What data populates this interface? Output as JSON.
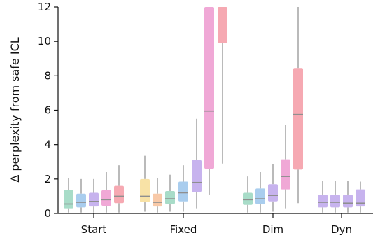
{
  "chart_data": {
    "type": "box",
    "ylabel": "Δ perplexity from safe ICL",
    "ylim": [
      0,
      12
    ],
    "yticks": [
      0,
      2,
      4,
      6,
      8,
      10,
      12
    ],
    "groups": [
      "Start",
      "Fixed",
      "Dim",
      "Dyn"
    ],
    "palette": [
      "#a8dcc8",
      "#a9cdee",
      "#c7b3ee",
      "#f0a8d6",
      "#f6a9b2",
      "#f8e2a6",
      "#f8c9a8"
    ],
    "boxes": [
      {
        "group": "Start",
        "color": "#a8dcc8",
        "whislo": 0.05,
        "q1": 0.3,
        "med": 0.55,
        "q3": 1.35,
        "whishi": 2.05
      },
      {
        "group": "Start",
        "color": "#a9cdee",
        "whislo": 0.05,
        "q1": 0.35,
        "med": 0.65,
        "q3": 1.15,
        "whishi": 2.0
      },
      {
        "group": "Start",
        "color": "#c7b3ee",
        "whislo": 0.05,
        "q1": 0.4,
        "med": 0.7,
        "q3": 1.2,
        "whishi": 2.0
      },
      {
        "group": "Start",
        "color": "#f0a8d6",
        "whislo": 0.05,
        "q1": 0.45,
        "med": 0.8,
        "q3": 1.35,
        "whishi": 2.4
      },
      {
        "group": "Start",
        "color": "#f6a9b2",
        "whislo": 0.05,
        "q1": 0.6,
        "med": 1.0,
        "q3": 1.6,
        "whishi": 2.8
      },
      {
        "group": "Fixed",
        "color": "#f8e2a6",
        "whislo": 0.1,
        "q1": 0.65,
        "med": 1.0,
        "q3": 2.0,
        "whishi": 3.35
      },
      {
        "group": "Fixed",
        "color": "#f8c9a8",
        "whislo": 0.05,
        "q1": 0.4,
        "med": 0.65,
        "q3": 1.15,
        "whishi": 2.05
      },
      {
        "group": "Fixed",
        "color": "#a8dcc8",
        "whislo": 0.1,
        "q1": 0.55,
        "med": 0.85,
        "q3": 1.3,
        "whishi": 2.25
      },
      {
        "group": "Fixed",
        "color": "#a9cdee",
        "whislo": 0.1,
        "q1": 0.7,
        "med": 1.2,
        "q3": 1.85,
        "whishi": 2.8
      },
      {
        "group": "Fixed",
        "color": "#c7b3ee",
        "whislo": 0.3,
        "q1": 1.25,
        "med": 1.8,
        "q3": 3.1,
        "whishi": 5.5
      },
      {
        "group": "Fixed",
        "color": "#f0a8d6",
        "whislo": 1.1,
        "q1": 2.6,
        "med": 5.95,
        "q3": 12,
        "whishi": 12
      },
      {
        "group": "Fixed",
        "color": "#f6a9b2",
        "whislo": 2.9,
        "q1": 9.9,
        "med": 12,
        "q3": 12,
        "whishi": 12
      },
      {
        "group": "Dim",
        "color": "#a8dcc8",
        "whislo": 0.05,
        "q1": 0.5,
        "med": 0.8,
        "q3": 1.2,
        "whishi": 2.15
      },
      {
        "group": "Dim",
        "color": "#a9cdee",
        "whislo": 0.05,
        "q1": 0.55,
        "med": 0.85,
        "q3": 1.45,
        "whishi": 2.4
      },
      {
        "group": "Dim",
        "color": "#c7b3ee",
        "whislo": 0.1,
        "q1": 0.7,
        "med": 1.05,
        "q3": 1.7,
        "whishi": 2.85
      },
      {
        "group": "Dim",
        "color": "#f0a8d6",
        "whislo": 0.3,
        "q1": 1.4,
        "med": 2.15,
        "q3": 3.15,
        "whishi": 5.15
      },
      {
        "group": "Dim",
        "color": "#f6a9b2",
        "whislo": 0.6,
        "q1": 2.55,
        "med": 5.75,
        "q3": 8.45,
        "whishi": 12
      },
      {
        "group": "Dyn",
        "color": "#c7b3ee",
        "whislo": 0.05,
        "q1": 0.35,
        "med": 0.65,
        "q3": 1.1,
        "whishi": 1.9
      },
      {
        "group": "Dyn",
        "color": "#c7b3ee",
        "whislo": 0.05,
        "q1": 0.35,
        "med": 0.65,
        "q3": 1.1,
        "whishi": 1.9
      },
      {
        "group": "Dyn",
        "color": "#c7b3ee",
        "whislo": 0.05,
        "q1": 0.35,
        "med": 0.6,
        "q3": 1.1,
        "whishi": 1.9
      },
      {
        "group": "Dyn",
        "color": "#c7b3ee",
        "whislo": 0.05,
        "q1": 0.4,
        "med": 0.6,
        "q3": 1.4,
        "whishi": 1.85
      }
    ]
  }
}
